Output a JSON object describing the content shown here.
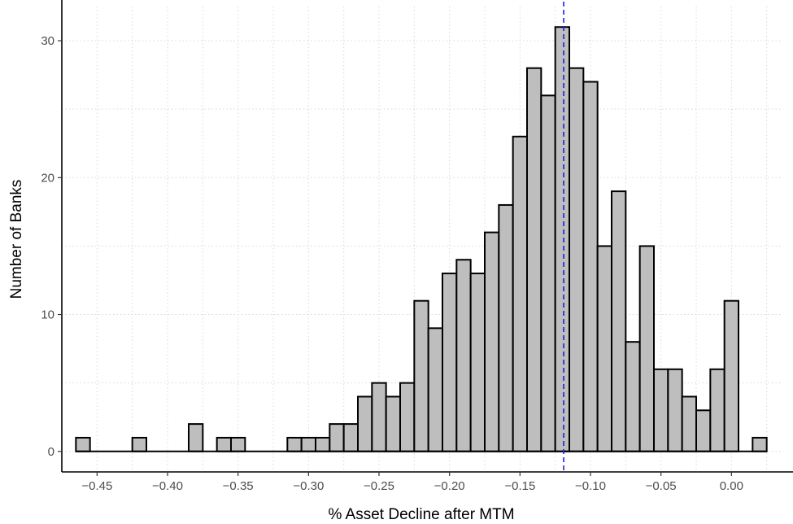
{
  "chart_data": {
    "type": "bar",
    "title": "",
    "xlabel": "% Asset Decline after MTM",
    "ylabel": "Number of Banks",
    "bin_width": 0.01,
    "bin_centers": [
      -0.46,
      -0.45,
      -0.44,
      -0.43,
      -0.42,
      -0.41,
      -0.4,
      -0.39,
      -0.38,
      -0.37,
      -0.36,
      -0.35,
      -0.34,
      -0.33,
      -0.32,
      -0.31,
      -0.3,
      -0.29,
      -0.28,
      -0.27,
      -0.26,
      -0.25,
      -0.24,
      -0.23,
      -0.22,
      -0.21,
      -0.2,
      -0.19,
      -0.18,
      -0.17,
      -0.16,
      -0.15,
      -0.14,
      -0.13,
      -0.12,
      -0.11,
      -0.1,
      -0.09,
      -0.08,
      -0.07,
      -0.06,
      -0.05,
      -0.04,
      -0.03,
      -0.02,
      -0.01,
      0.0,
      0.01,
      0.02
    ],
    "counts": [
      1,
      0,
      0,
      0,
      1,
      0,
      0,
      0,
      2,
      0,
      1,
      1,
      0,
      0,
      0,
      1,
      1,
      1,
      2,
      2,
      4,
      5,
      4,
      5,
      11,
      9,
      13,
      14,
      13,
      16,
      18,
      23,
      28,
      26,
      31,
      28,
      27,
      15,
      19,
      8,
      15,
      6,
      6,
      4,
      3,
      6,
      11,
      0,
      1
    ],
    "reference_line_x": -0.119,
    "xlim": [
      -0.475,
      0.035
    ],
    "ylim": [
      -1.5,
      32.5
    ],
    "x_ticks": [
      -0.45,
      -0.4,
      -0.35,
      -0.3,
      -0.25,
      -0.2,
      -0.15,
      -0.1,
      -0.05,
      0.0
    ],
    "x_tick_labels": [
      "−0.45",
      "−0.40",
      "−0.35",
      "−0.30",
      "−0.25",
      "−0.20",
      "−0.15",
      "−0.10",
      "−0.05",
      "0.00"
    ],
    "y_ticks": [
      0,
      10,
      20,
      30
    ],
    "y_tick_labels": [
      "0",
      "10",
      "20",
      "30"
    ],
    "grid": true,
    "colors": {
      "bar_fill": "#bebebe",
      "bar_stroke": "#000000",
      "reference_line": "#1f1fd6"
    }
  }
}
